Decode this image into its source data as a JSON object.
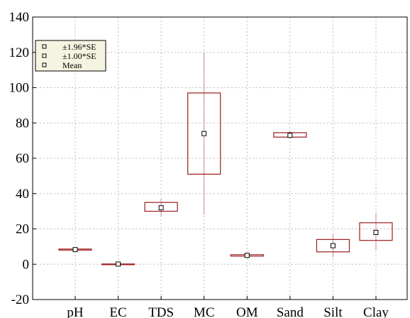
{
  "chart_data": {
    "type": "box",
    "categories": [
      "pH",
      "EC",
      "TDS",
      "MC",
      "OM",
      "Sand",
      "Silt",
      "Clay"
    ],
    "ylim": [
      -20,
      140
    ],
    "yticks": [
      -20,
      0,
      20,
      40,
      60,
      80,
      100,
      120,
      140
    ],
    "ytick_labels": [
      "-20",
      "0",
      "20",
      "40",
      "60",
      "80",
      "100",
      "120",
      "140"
    ],
    "grid": true,
    "legend_position": "top-left",
    "legend": [
      {
        "symbol": "whisker",
        "label": "±1.96*SE"
      },
      {
        "symbol": "box",
        "label": "±1.00*SE"
      },
      {
        "symbol": "mean",
        "label": "Mean"
      }
    ],
    "series": [
      {
        "category": "pH",
        "mean": 8.3,
        "box": [
          8.0,
          8.6
        ],
        "whisker": [
          7.8,
          8.8
        ]
      },
      {
        "category": "EC",
        "mean": 0.1,
        "box": [
          0.05,
          0.15
        ],
        "whisker": [
          0.0,
          0.2
        ]
      },
      {
        "category": "TDS",
        "mean": 32,
        "box": [
          30,
          35
        ],
        "whisker": [
          27,
          37
        ]
      },
      {
        "category": "MC",
        "mean": 74,
        "box": [
          51,
          97
        ],
        "whisker": [
          28,
          120
        ]
      },
      {
        "category": "OM",
        "mean": 5,
        "box": [
          4.6,
          5.4
        ],
        "whisker": [
          4.2,
          5.8
        ]
      },
      {
        "category": "Sand",
        "mean": 73,
        "box": [
          72,
          74.5
        ],
        "whisker": [
          71,
          75.5
        ]
      },
      {
        "category": "Silt",
        "mean": 10.5,
        "box": [
          7,
          14
        ],
        "whisker": [
          4,
          17
        ]
      },
      {
        "category": "Clay",
        "mean": 18,
        "box": [
          13.5,
          23.5
        ],
        "whisker": [
          8,
          29
        ]
      }
    ],
    "colors": {
      "box_stroke": "#9b1c1c",
      "whisker": "#c98888",
      "grid": "#bdbdbd",
      "legend_bg": "#f4f4e0"
    }
  }
}
